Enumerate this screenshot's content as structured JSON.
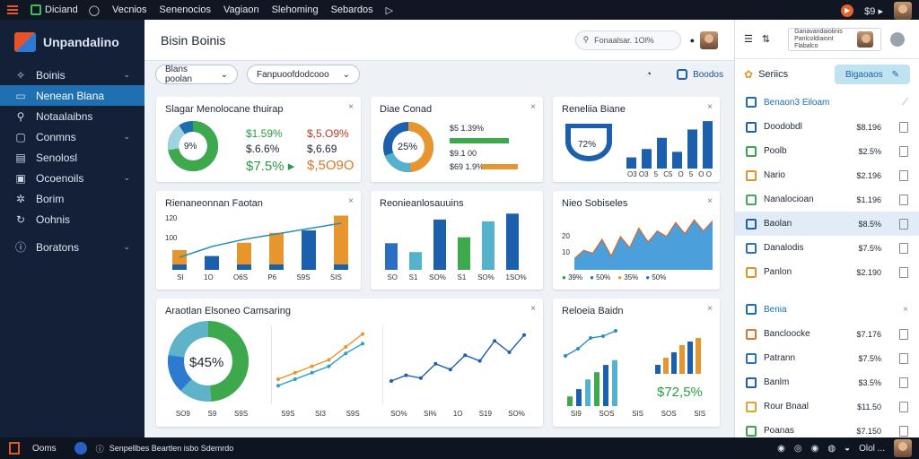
{
  "topbar": {
    "items": [
      "Diciand",
      "Vecnios",
      "Senenocios",
      "Vagiaon",
      "Slehoming",
      "Sebardos"
    ],
    "right_label": "$9 ▸"
  },
  "sidebar": {
    "brand": "Unpandalino",
    "items": [
      {
        "label": "Boinis",
        "icon": "shield-icon",
        "chevron": true,
        "active": false
      },
      {
        "label": "Nenean Blana",
        "icon": "monitor-icon",
        "chevron": false,
        "active": true
      },
      {
        "label": "Notaalaibns",
        "icon": "search-icon",
        "chevron": false,
        "active": false
      },
      {
        "label": "Conmns",
        "icon": "box-icon",
        "chevron": true,
        "active": false
      },
      {
        "label": "Senolosl",
        "icon": "calendar-icon",
        "chevron": false,
        "active": false
      },
      {
        "label": "Ocoenoils",
        "icon": "layers-icon",
        "chevron": true,
        "active": false
      },
      {
        "label": "Borim",
        "icon": "gear-icon",
        "chevron": false,
        "active": false
      },
      {
        "label": "Oohnis",
        "icon": "refresh-icon",
        "chevron": false,
        "active": false
      },
      {
        "label": "Boratons",
        "icon": "info-icon",
        "chevron": true,
        "active": false
      }
    ]
  },
  "main": {
    "title": "Bisin Boinis",
    "search_text": "Fonaalsar. 1Ol%",
    "filter1": "Blans poolan",
    "filter2": "Fanpuoofdodcooo",
    "filter_btn": "Boodos"
  },
  "cards": {
    "c1": {
      "title": "Slagar Menolocane thuirap",
      "donut_label": "9%",
      "v1": "$1.59%",
      "v2": "$,5.O9%",
      "v3": "$.6.6%",
      "v4": "$,6.69",
      "v5": "$7.5% ▸",
      "v6": "$,5O9O"
    },
    "c2": {
      "title": "Diae Conad",
      "donut_label": "25%",
      "v1": "$5 1.39%",
      "v2": "$9.1 00",
      "v3": "$69 1.9%"
    },
    "c3": {
      "title": "Reneliia Biane",
      "badge": "72%",
      "bars": [
        20,
        35,
        55,
        30,
        70,
        85
      ],
      "ticks": [
        "O3 O3",
        "5",
        "C5",
        "O",
        "5",
        "O O"
      ]
    },
    "c4": {
      "title": "Rienaneonnan Faotan",
      "ylabels": [
        "120",
        "100"
      ],
      "bars": [
        40,
        28,
        55,
        75,
        80,
        110
      ],
      "ticks": [
        "SI",
        "1O",
        "O6S",
        "P6",
        "S9S",
        "SIS"
      ]
    },
    "c5": {
      "title": "Reonieanlosauuins",
      "bars": [
        45,
        30,
        85,
        55,
        82,
        95
      ],
      "ticks": [
        "SO",
        "S1",
        "SO%",
        "S1",
        "SO%",
        "1SO%"
      ]
    },
    "c6": {
      "title": "Nieo Sobiseles",
      "ylabels": [
        "20",
        "10"
      ],
      "legend": [
        "39%",
        "50%",
        "35%",
        "50%"
      ],
      "points": [
        20,
        35,
        30,
        55,
        25,
        60,
        40,
        75,
        50,
        70,
        60,
        85,
        65,
        90,
        70,
        88
      ]
    },
    "c7": {
      "title": "Araotlan Elsoneo Camsaring",
      "donut_label": "$45%",
      "line1": [
        10,
        14,
        18,
        22,
        30,
        38
      ],
      "line2": [
        6,
        10,
        14,
        18,
        26,
        32
      ],
      "line3": [
        10,
        14,
        12,
        22,
        18,
        28,
        24,
        38,
        30,
        42
      ],
      "ticks1": [
        "SO9",
        "S9",
        "S9S"
      ],
      "ticks2": [
        "S9S",
        "SI3",
        "S9S"
      ],
      "ticks3": [
        "SO%",
        "SI%",
        "1O",
        "S19",
        "SO%"
      ]
    },
    "c8": {
      "title": "Reloeia Baidn",
      "bars": [
        20,
        35,
        55,
        70,
        85,
        95
      ],
      "bars2": [
        25,
        45,
        60,
        80,
        90,
        100
      ],
      "big": "$72,5%",
      "ticks": [
        "SI9",
        "SOS",
        "SIS",
        "SOS",
        "SIS"
      ],
      "line": [
        20,
        28,
        40,
        42,
        48
      ]
    }
  },
  "rpanel": {
    "search_text": "Ganavandaiolinis Panlcoldiaiont Flabalco",
    "sec_title": "Seriics",
    "sec_btn": "Bigaoaos",
    "group1": "Benaon3 Eiloam",
    "rows1": [
      {
        "label": "Doodobdl",
        "val": "$8.196",
        "color": "#1e5fae"
      },
      {
        "label": "Poolb",
        "val": "$2.5%",
        "color": "#3aa54a"
      },
      {
        "label": "Nario",
        "val": "$2.196",
        "color": "#e0922c"
      },
      {
        "label": "Nanalocioan",
        "val": "$1.196",
        "color": "#4aa55c"
      },
      {
        "label": "Baolan",
        "val": "$8.5%",
        "color": "#1e5fae",
        "sel": true
      },
      {
        "label": "Danalodis",
        "val": "$7.5%",
        "color": "#2b6fc4"
      },
      {
        "label": "Panlon",
        "val": "$2.190",
        "color": "#e0922c"
      }
    ],
    "group2": "Benia",
    "rows2": [
      {
        "label": "Bancloocke",
        "val": "$7.176",
        "color": "#d8782a"
      },
      {
        "label": "Patrann",
        "val": "$7.5%",
        "color": "#2b6fc4"
      },
      {
        "label": "Banlm",
        "val": "$3.5%",
        "color": "#1e5fae"
      },
      {
        "label": "Rour Bnaal",
        "val": "$11.50",
        "color": "#e2a32c"
      },
      {
        "label": "Poanas",
        "val": "$7.150",
        "color": "#3aa54a"
      }
    ]
  },
  "botbar": {
    "label": "Ooms",
    "status": "Senpellbes Beartlen isbo Sdemrdo",
    "right": "Olol ..."
  },
  "colors": {
    "blue": "#1c5fad",
    "green": "#3ea84c",
    "orange": "#e7962d",
    "teal": "#54b2cc",
    "navy": "#142038"
  }
}
